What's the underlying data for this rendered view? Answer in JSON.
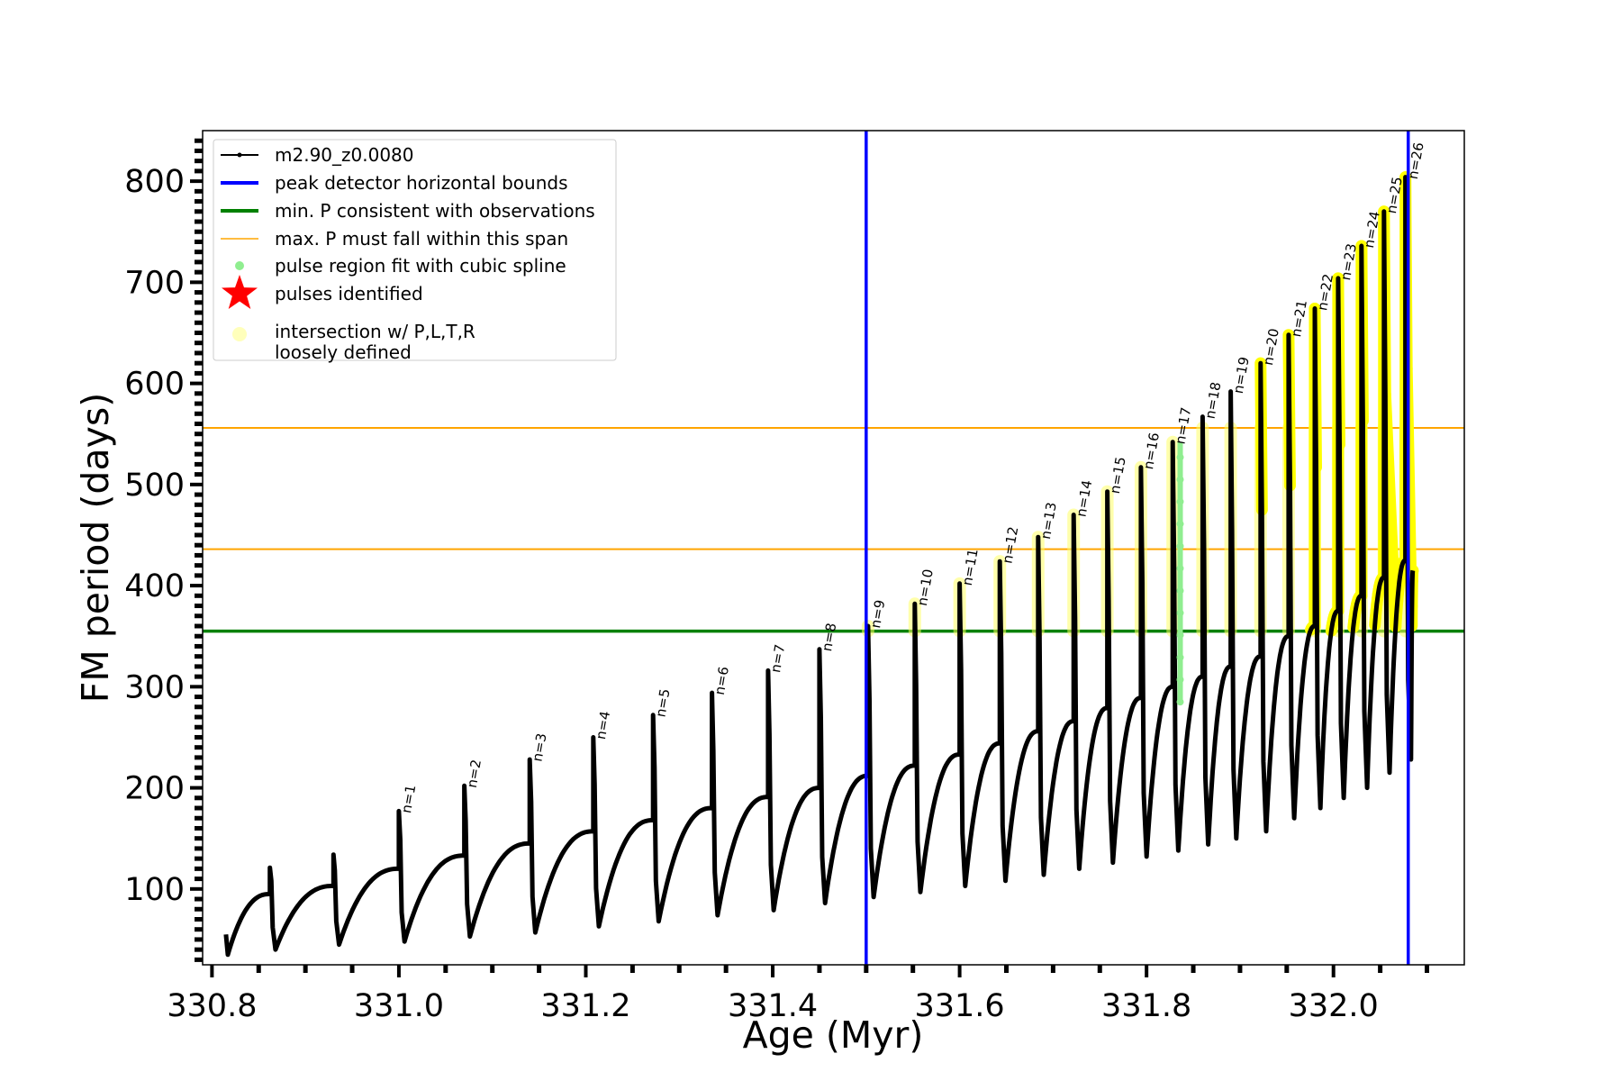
{
  "chart_data": {
    "type": "line",
    "title": "",
    "xlabel": "Age (Myr)",
    "ylabel": "FM period (days)",
    "xlim": [
      330.79,
      332.14
    ],
    "ylim": [
      25,
      850
    ],
    "x_ticks": [
      330.8,
      331.0,
      331.2,
      331.4,
      331.6,
      331.8,
      332.0
    ],
    "x_tick_labels": [
      "330.8",
      "331.0",
      "331.2",
      "331.4",
      "331.6",
      "331.8",
      "332.0"
    ],
    "y_ticks": [
      100,
      200,
      300,
      400,
      500,
      600,
      700,
      800
    ],
    "y_tick_labels": [
      "100",
      "200",
      "300",
      "400",
      "500",
      "600",
      "700",
      "800"
    ],
    "grid": false,
    "legend_position": "top-left",
    "legend": [
      {
        "label": "m2.90_z0.0080",
        "kind": "line-marker",
        "color": "#000000"
      },
      {
        "label": "peak detector horizontal bounds",
        "kind": "line",
        "color": "#0000ff"
      },
      {
        "label": "min. P consistent with observations",
        "kind": "line",
        "color": "#008000"
      },
      {
        "label": "max. P must fall within this span",
        "kind": "line",
        "color": "#ffa500"
      },
      {
        "label": "pulse region fit with cubic spline",
        "kind": "dot",
        "color": "#90ee90"
      },
      {
        "label": "pulses identified",
        "kind": "star",
        "color": "#ff0000"
      },
      {
        "label": "intersection w/ P,L,T,R",
        "label2": "loosely defined",
        "kind": "dot",
        "color": "#ffffbb"
      }
    ],
    "vertical_lines": [
      {
        "x": 331.5,
        "color": "#0000ff"
      },
      {
        "x": 332.08,
        "color": "#0000ff"
      }
    ],
    "horizontal_lines": [
      {
        "y": 355,
        "color": "#008000"
      },
      {
        "y": 436,
        "color": "#ffa500"
      },
      {
        "y": 556,
        "color": "#ffa500"
      }
    ],
    "series_color": "#000000",
    "start": {
      "x": 330.815,
      "y": 55,
      "min": 35
    },
    "pulses": [
      {
        "n": "",
        "x": 330.862,
        "pre": 95,
        "peak": 121,
        "min": 40,
        "label": ""
      },
      {
        "n": "",
        "x": 330.93,
        "pre": 103,
        "peak": 134,
        "min": 45,
        "label": ""
      },
      {
        "n": "1",
        "x": 331.0,
        "pre": 120,
        "peak": 177,
        "min": 48,
        "label": "n=1"
      },
      {
        "n": "2",
        "x": 331.07,
        "pre": 133,
        "peak": 202,
        "min": 53,
        "label": "n=2"
      },
      {
        "n": "3",
        "x": 331.14,
        "pre": 145,
        "peak": 228,
        "min": 57,
        "label": "n=3"
      },
      {
        "n": "4",
        "x": 331.208,
        "pre": 157,
        "peak": 250,
        "min": 63,
        "label": "n=4"
      },
      {
        "n": "5",
        "x": 331.272,
        "pre": 168,
        "peak": 272,
        "min": 68,
        "label": "n=5"
      },
      {
        "n": "6",
        "x": 331.335,
        "pre": 180,
        "peak": 294,
        "min": 74,
        "label": "n=6"
      },
      {
        "n": "7",
        "x": 331.395,
        "pre": 191,
        "peak": 316,
        "min": 79,
        "label": "n=7"
      },
      {
        "n": "8",
        "x": 331.45,
        "pre": 200,
        "peak": 337,
        "min": 86,
        "label": "n=8"
      },
      {
        "n": "9",
        "x": 331.502,
        "pre": 212,
        "peak": 360,
        "min": 92,
        "label": "n=9"
      },
      {
        "n": "10",
        "x": 331.552,
        "pre": 222,
        "peak": 382,
        "min": 97,
        "label": "n=10"
      },
      {
        "n": "11",
        "x": 331.6,
        "pre": 233,
        "peak": 402,
        "min": 103,
        "label": "n=11"
      },
      {
        "n": "12",
        "x": 331.643,
        "pre": 244,
        "peak": 424,
        "min": 108,
        "label": "n=12"
      },
      {
        "n": "13",
        "x": 331.684,
        "pre": 256,
        "peak": 448,
        "min": 114,
        "label": "n=13"
      },
      {
        "n": "14",
        "x": 331.722,
        "pre": 266,
        "peak": 470,
        "min": 120,
        "label": "n=14"
      },
      {
        "n": "15",
        "x": 331.758,
        "pre": 279,
        "peak": 493,
        "min": 126,
        "label": "n=15"
      },
      {
        "n": "16",
        "x": 331.794,
        "pre": 289,
        "peak": 517,
        "min": 132,
        "label": "n=16"
      },
      {
        "n": "17",
        "x": 331.828,
        "pre": 300,
        "peak": 542,
        "min": 138,
        "label": "n=17"
      },
      {
        "n": "18",
        "x": 331.86,
        "pre": 310,
        "peak": 567,
        "min": 144,
        "label": "n=18"
      },
      {
        "n": "19",
        "x": 331.89,
        "pre": 320,
        "peak": 592,
        "min": 150,
        "label": "n=19"
      },
      {
        "n": "20",
        "x": 331.922,
        "pre": 330,
        "peak": 620,
        "min": 157,
        "label": "n=20"
      },
      {
        "n": "21",
        "x": 331.952,
        "pre": 350,
        "peak": 648,
        "min": 170,
        "label": "n=21"
      },
      {
        "n": "22",
        "x": 331.98,
        "pre": 360,
        "peak": 674,
        "min": 180,
        "label": "n=22"
      },
      {
        "n": "23",
        "x": 332.005,
        "pre": 375,
        "peak": 704,
        "min": 190,
        "label": "n=23"
      },
      {
        "n": "24",
        "x": 332.03,
        "pre": 390,
        "peak": 736,
        "min": 200,
        "label": "n=24"
      },
      {
        "n": "25",
        "x": 332.054,
        "pre": 408,
        "peak": 770,
        "min": 215,
        "label": "n=25"
      },
      {
        "n": "26",
        "x": 332.077,
        "pre": 425,
        "peak": 804,
        "min": 228,
        "label": "n=26"
      }
    ],
    "spline_pulse": {
      "x": 331.836,
      "y_top": 542,
      "y_bottom": 285
    },
    "end": {
      "x": 332.085,
      "y": 415
    }
  }
}
